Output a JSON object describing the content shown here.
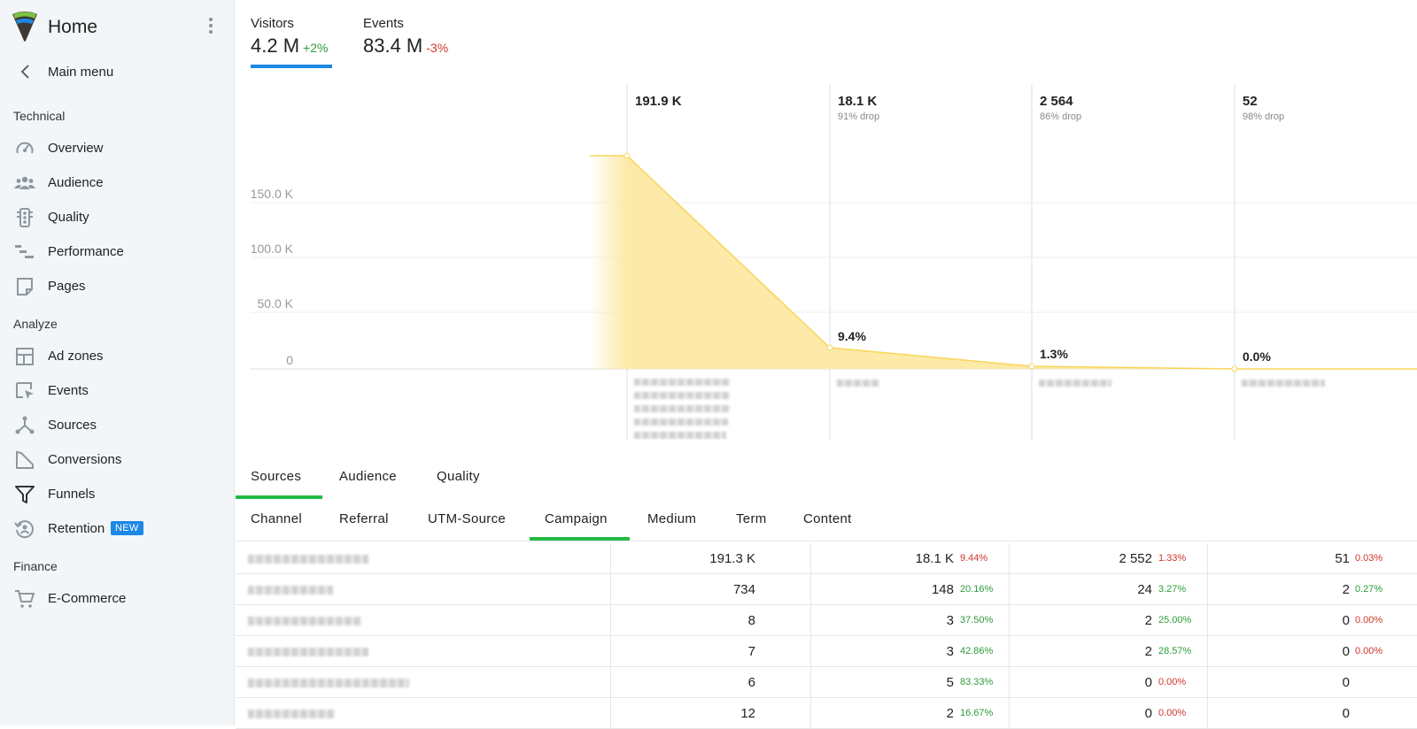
{
  "sidebar": {
    "title": "Home",
    "back_label": "Main menu",
    "sections": [
      {
        "title": "Technical",
        "items": [
          {
            "label": "Overview",
            "icon": "gauge-icon"
          },
          {
            "label": "Audience",
            "icon": "users-icon"
          },
          {
            "label": "Quality",
            "icon": "traffic-light-icon"
          },
          {
            "label": "Performance",
            "icon": "gantt-icon"
          },
          {
            "label": "Pages",
            "icon": "page-icon"
          }
        ]
      },
      {
        "title": "Analyze",
        "items": [
          {
            "label": "Ad zones",
            "icon": "layout-icon"
          },
          {
            "label": "Events",
            "icon": "cursor-click-icon"
          },
          {
            "label": "Sources",
            "icon": "share-nodes-icon"
          },
          {
            "label": "Conversions",
            "icon": "conversion-icon"
          },
          {
            "label": "Funnels",
            "icon": "funnel-icon"
          },
          {
            "label": "Retention",
            "icon": "retention-icon",
            "badge": "NEW"
          }
        ]
      },
      {
        "title": "Finance",
        "items": [
          {
            "label": "E-Commerce",
            "icon": "cart-icon"
          }
        ]
      }
    ]
  },
  "kpis": [
    {
      "label": "Visitors",
      "value": "4.2 M",
      "delta": "+2%",
      "trend": "pos",
      "active": true
    },
    {
      "label": "Events",
      "value": "83.4 M",
      "delta": "-3%",
      "trend": "neg",
      "active": false
    }
  ],
  "funnel": {
    "y_ticks": [
      "150.0 K",
      "100.0 K",
      "50.0 K",
      "0"
    ],
    "steps": [
      {
        "value": "191.9 K",
        "drop": "",
        "rate": ""
      },
      {
        "value": "18.1 K",
        "drop": "91% drop",
        "rate": "9.4%"
      },
      {
        "value": "2 564",
        "drop": "86% drop",
        "rate": "1.3%"
      },
      {
        "value": "52",
        "drop": "98% drop",
        "rate": "0.0%"
      }
    ],
    "accent": "#fde9a8"
  },
  "tabs_primary": [
    "Sources",
    "Audience",
    "Quality"
  ],
  "tabs_secondary": [
    "Channel",
    "Referral",
    "UTM-Source",
    "Campaign",
    "Medium",
    "Term",
    "Content"
  ],
  "table": {
    "rows": [
      {
        "c1": "191.3 K",
        "c2": "18.1 K",
        "p2": "9.44%",
        "t2": "neg",
        "c3": "2 552",
        "p3": "1.33%",
        "t3": "neg",
        "c4": "51",
        "p4": "0.03%",
        "t4": "neg"
      },
      {
        "c1": "734",
        "c2": "148",
        "p2": "20.16%",
        "t2": "pos",
        "c3": "24",
        "p3": "3.27%",
        "t3": "pos",
        "c4": "2",
        "p4": "0.27%",
        "t4": "pos"
      },
      {
        "c1": "8",
        "c2": "3",
        "p2": "37.50%",
        "t2": "pos",
        "c3": "2",
        "p3": "25.00%",
        "t3": "pos",
        "c4": "0",
        "p4": "0.00%",
        "t4": "neg"
      },
      {
        "c1": "7",
        "c2": "3",
        "p2": "42.86%",
        "t2": "pos",
        "c3": "2",
        "p3": "28.57%",
        "t3": "pos",
        "c4": "0",
        "p4": "0.00%",
        "t4": "neg"
      },
      {
        "c1": "6",
        "c2": "5",
        "p2": "83.33%",
        "t2": "pos",
        "c3": "0",
        "p3": "0.00%",
        "t3": "neg",
        "c4": "0",
        "p4": "",
        "t4": ""
      },
      {
        "c1": "12",
        "c2": "2",
        "p2": "16.67%",
        "t2": "pos",
        "c3": "0",
        "p3": "0.00%",
        "t3": "neg",
        "c4": "0",
        "p4": "",
        "t4": ""
      }
    ]
  }
}
